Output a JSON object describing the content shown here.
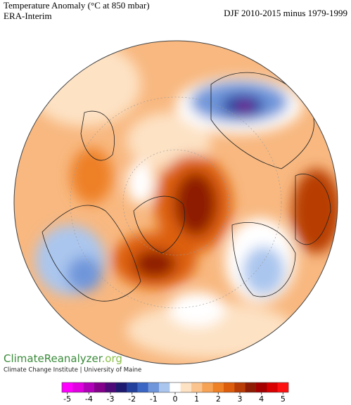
{
  "header": {
    "title": "Temperature Anomaly (°C at 850 mbar)",
    "subtitle": "ERA-Interim",
    "period": "DJF 2010-2015 minus 1979-1999"
  },
  "branding": {
    "name": "ClimateReanalyzer",
    "domain": ".org",
    "credit": "Climate Change Institute | University of Maine"
  },
  "colorbar": {
    "lim": [
      -5.25,
      5.25
    ],
    "ticks": [
      -5,
      -4,
      -3,
      -2,
      -1,
      0,
      1,
      2,
      3,
      4,
      5
    ],
    "colors": [
      "#ff00ff",
      "#e000e0",
      "#b000b8",
      "#82008a",
      "#4e0a78",
      "#1e1a70",
      "#22409c",
      "#3b66c4",
      "#6f96da",
      "#aac6ee",
      "#ffffff",
      "#fde2c4",
      "#fbc48e",
      "#f6a356",
      "#ee8026",
      "#dc5e0c",
      "#b83c06",
      "#8e1c04",
      "#a40000",
      "#d80000",
      "#ff1010"
    ]
  }
}
